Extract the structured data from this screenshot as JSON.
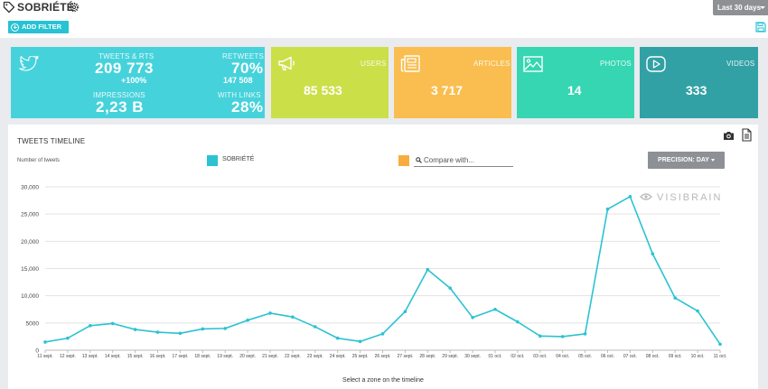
{
  "header": {
    "title": "SOBRIÉTÉ",
    "period_label": "Last 30 days",
    "add_filter_label": "ADD FILTER"
  },
  "cards": {
    "twitter": {
      "tweets_label": "TWEETS & RTS",
      "tweets_value": "209 773",
      "tweets_change": "+100%",
      "retweets_label": "RETWEETS",
      "retweets_pct": "70%",
      "retweets_value": "147 508",
      "impressions_label": "IMPRESSIONS",
      "impressions_value": "2,23 B",
      "links_label": "WITH LINKS",
      "links_value": "28%"
    },
    "users": {
      "label": "USERS",
      "value": "85 533"
    },
    "articles": {
      "label": "ARTICLES",
      "value": "3 717"
    },
    "photos": {
      "label": "PHOTOS",
      "value": "14"
    },
    "videos": {
      "label": "VIDEOS",
      "value": "333"
    }
  },
  "timeline": {
    "title": "TWEETS TIMELINE",
    "y_axis_label": "Number of tweets",
    "series_label": "SOBRIÉTÉ",
    "compare_placeholder": "Compare with...",
    "precision_label": "PRECISION: DAY",
    "watermark": "VISIBRAIN",
    "footer_note": "Select a zone on the timeline"
  },
  "colors": {
    "series": "#2cc2d1",
    "compare": "#f7ad3e",
    "accent": "#27c3d3"
  },
  "chart_data": {
    "type": "line",
    "categories": [
      "11 sept.",
      "12 sept.",
      "13 sept.",
      "14 sept.",
      "15 sept.",
      "16 sept.",
      "17 sept.",
      "18 sept.",
      "19 sept.",
      "20 sept.",
      "21 sept.",
      "22 sept.",
      "23 sept.",
      "24 sept.",
      "25 sept.",
      "26 sept.",
      "27 sept.",
      "28 sept.",
      "29 sept.",
      "30 sept.",
      "01 oct.",
      "02 oct.",
      "03 oct.",
      "04 oct.",
      "05 oct.",
      "06 oct.",
      "07 oct.",
      "08 oct.",
      "09 oct.",
      "10 oct.",
      "11 oct."
    ],
    "series": [
      {
        "name": "SOBRIÉTÉ",
        "values": [
          1500,
          2200,
          4500,
          4900,
          3800,
          3300,
          3100,
          3900,
          4000,
          5500,
          6800,
          6100,
          4300,
          2200,
          1600,
          3000,
          7100,
          14800,
          11400,
          6000,
          7500,
          5200,
          2600,
          2500,
          3000,
          25900,
          28200,
          17700,
          9600,
          7200,
          1100
        ]
      }
    ],
    "ylim": [
      0,
      30000
    ],
    "yticks": [
      0,
      5000,
      10000,
      15000,
      20000,
      25000,
      30000
    ],
    "ytick_labels": [
      "0",
      "5000",
      "10,000",
      "15,000",
      "20,000",
      "25,000",
      "30,000"
    ],
    "grid": true,
    "legend": "top"
  }
}
